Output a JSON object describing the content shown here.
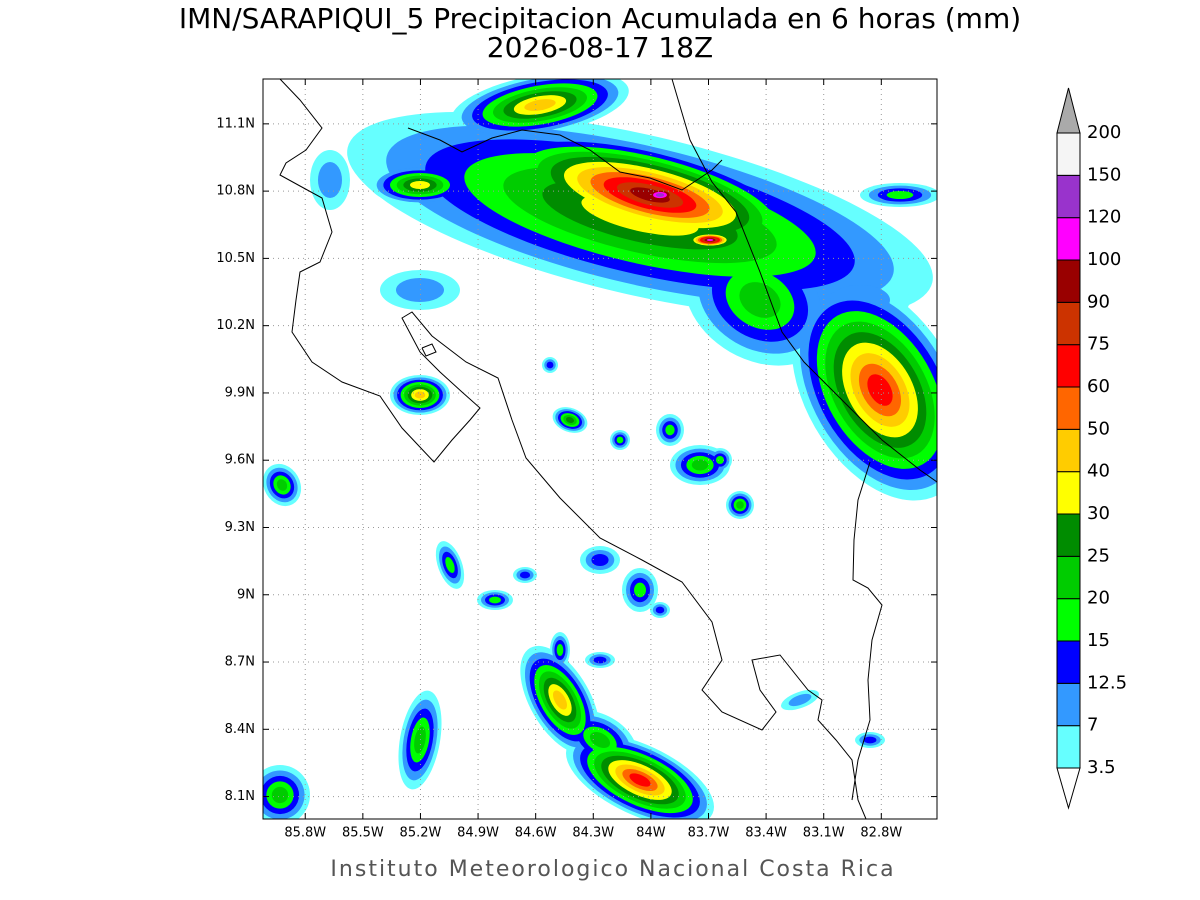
{
  "title": "IMN/SARAPIQUI_5 Precipitacion Acumulada en 6 horas (mm)",
  "subtitle": "2026-08-17 18Z",
  "footer": "Instituto Meteorologico Nacional Costa Rica",
  "map": {
    "xlim": [
      -86.02,
      -82.51
    ],
    "ylim": [
      8.0,
      11.3
    ],
    "grid": true,
    "xticks": [
      {
        "value": -85.8,
        "label": "85.8W"
      },
      {
        "value": -85.5,
        "label": "85.5W"
      },
      {
        "value": -85.2,
        "label": "85.2W"
      },
      {
        "value": -84.9,
        "label": "84.9W"
      },
      {
        "value": -84.6,
        "label": "84.6W"
      },
      {
        "value": -84.3,
        "label": "84.3W"
      },
      {
        "value": -84,
        "label": "84W"
      },
      {
        "value": -83.7,
        "label": "83.7W"
      },
      {
        "value": -83.4,
        "label": "83.4W"
      },
      {
        "value": -83.1,
        "label": "83.1W"
      },
      {
        "value": -82.8,
        "label": "82.8W"
      }
    ],
    "yticks": [
      {
        "value": 8.1,
        "label": "8.1N"
      },
      {
        "value": 8.4,
        "label": "8.4N"
      },
      {
        "value": 8.7,
        "label": "8.7N"
      },
      {
        "value": 9,
        "label": "9N"
      },
      {
        "value": 9.3,
        "label": "9.3N"
      },
      {
        "value": 9.6,
        "label": "9.6N"
      },
      {
        "value": 9.9,
        "label": "9.9N"
      },
      {
        "value": 10.2,
        "label": "10.2N"
      },
      {
        "value": 10.5,
        "label": "10.5N"
      },
      {
        "value": 10.8,
        "label": "10.8N"
      },
      {
        "value": 11.1,
        "label": "11.1N"
      }
    ]
  },
  "colorbar": {
    "levels": [
      3.5,
      7,
      12.5,
      15,
      20,
      25,
      30,
      40,
      50,
      60,
      75,
      90,
      100,
      120,
      150,
      200
    ],
    "colors": [
      "#66ffff",
      "#3399ff",
      "#0000ff",
      "#00ff00",
      "#00cc00",
      "#008c00",
      "#ffff00",
      "#ffcc00",
      "#ff6600",
      "#ff0000",
      "#cc3300",
      "#990000",
      "#ff00ff",
      "#9933cc",
      "#f5f5f5"
    ],
    "over_color": "#aaaaaa",
    "under_color": "#ffffff"
  }
}
